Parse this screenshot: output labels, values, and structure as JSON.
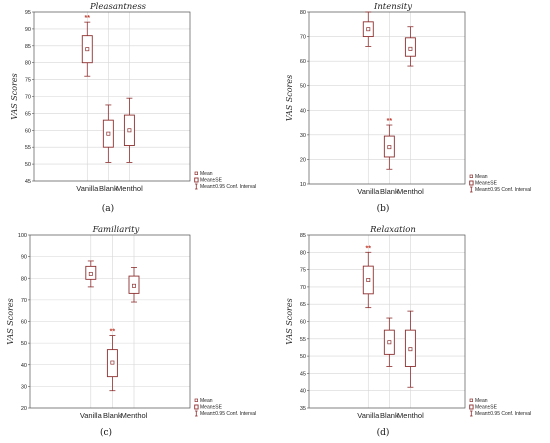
{
  "figure": {
    "categories": [
      "Vanilla",
      "Blank",
      "Menthol"
    ],
    "legend": [
      "Mean",
      "Mean±SE",
      "Mean±0.95 Conf. Interval"
    ],
    "ylabel": "VAS Scores",
    "colors": {
      "box": "#8e2f2f",
      "stars": "#c0392b"
    }
  },
  "chart_data": [
    {
      "type": "box",
      "title": "Pleasantness",
      "panel_label": "(a)",
      "ylabel": "VAS Scores",
      "ylim": [
        45,
        95
      ],
      "yticks": [
        45,
        50,
        55,
        60,
        65,
        70,
        75,
        80,
        85,
        90,
        95
      ],
      "categories": [
        "Vanilla",
        "Blank",
        "Menthol"
      ],
      "series": [
        {
          "category": "Vanilla",
          "mean": 84,
          "se_low": 80,
          "se_high": 88,
          "ci_low": 76,
          "ci_high": 92,
          "annotation": "**"
        },
        {
          "category": "Blank",
          "mean": 59,
          "se_low": 55,
          "se_high": 63,
          "ci_low": 50.5,
          "ci_high": 67.5,
          "annotation": ""
        },
        {
          "category": "Menthol",
          "mean": 60,
          "se_low": 55.5,
          "se_high": 64.5,
          "ci_low": 50.5,
          "ci_high": 69.5,
          "annotation": ""
        }
      ],
      "legend": [
        "Mean",
        "Mean±SE",
        "Mean±0.95 Conf. Interval"
      ],
      "grid": true,
      "legend_position": "bottom-right"
    },
    {
      "type": "box",
      "title": "Intensity",
      "panel_label": "(b)",
      "ylabel": "VAS Scores",
      "ylim": [
        10,
        80
      ],
      "yticks": [
        10,
        20,
        30,
        40,
        50,
        60,
        70,
        80
      ],
      "categories": [
        "Vanilla",
        "Blank",
        "Menthol"
      ],
      "series": [
        {
          "category": "Vanilla",
          "mean": 73,
          "se_low": 70,
          "se_high": 76,
          "ci_low": 66,
          "ci_high": 80,
          "annotation": ""
        },
        {
          "category": "Blank",
          "mean": 25,
          "se_low": 21,
          "se_high": 29.5,
          "ci_low": 16,
          "ci_high": 34,
          "annotation": "**"
        },
        {
          "category": "Menthol",
          "mean": 65,
          "se_low": 62,
          "se_high": 69.5,
          "ci_low": 58,
          "ci_high": 74,
          "annotation": ""
        }
      ],
      "legend": [
        "Mean",
        "Mean±SE",
        "Mean±0.95 Conf. Interval"
      ],
      "grid": true,
      "legend_position": "bottom-right"
    },
    {
      "type": "box",
      "title": "Familiarity",
      "panel_label": "(c)",
      "ylabel": "VAS Scores",
      "ylim": [
        20,
        100
      ],
      "yticks": [
        20,
        30,
        40,
        50,
        60,
        70,
        80,
        90,
        100
      ],
      "categories": [
        "Vanilla",
        "Blank",
        "Menthol"
      ],
      "series": [
        {
          "category": "Vanilla",
          "mean": 82,
          "se_low": 79.5,
          "se_high": 85.5,
          "ci_low": 76,
          "ci_high": 88,
          "annotation": ""
        },
        {
          "category": "Blank",
          "mean": 41,
          "se_low": 34.5,
          "se_high": 47,
          "ci_low": 28,
          "ci_high": 53.5,
          "annotation": "**"
        },
        {
          "category": "Menthol",
          "mean": 76.5,
          "se_low": 73,
          "se_high": 81,
          "ci_low": 69,
          "ci_high": 85,
          "annotation": ""
        }
      ],
      "legend": [
        "Mean",
        "Mean±SE",
        "Mean±0.95 Conf. Interval"
      ],
      "grid": true,
      "legend_position": "bottom-right"
    },
    {
      "type": "box",
      "title": "Relaxation",
      "panel_label": "(d)",
      "ylabel": "VAS Scores",
      "ylim": [
        35,
        85
      ],
      "yticks": [
        35,
        40,
        45,
        50,
        55,
        60,
        65,
        70,
        75,
        80,
        85
      ],
      "categories": [
        "Vanilla",
        "Blank",
        "Menthol"
      ],
      "series": [
        {
          "category": "Vanilla",
          "mean": 72,
          "se_low": 68,
          "se_high": 76,
          "ci_low": 64,
          "ci_high": 80,
          "annotation": "**"
        },
        {
          "category": "Blank",
          "mean": 54,
          "se_low": 50.5,
          "se_high": 57.5,
          "ci_low": 47,
          "ci_high": 61,
          "annotation": ""
        },
        {
          "category": "Menthol",
          "mean": 52,
          "se_low": 47,
          "se_high": 57.5,
          "ci_low": 41,
          "ci_high": 63,
          "annotation": ""
        }
      ],
      "legend": [
        "Mean",
        "Mean±SE",
        "Mean±0.95 Conf. Interval"
      ],
      "grid": true,
      "legend_position": "bottom-right"
    }
  ]
}
